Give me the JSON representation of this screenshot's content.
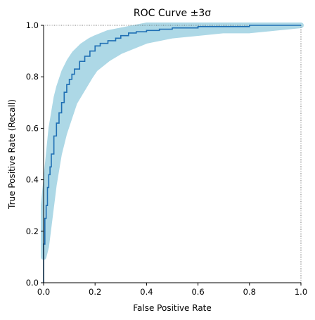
{
  "chart_data": {
    "type": "line",
    "title": "ROC Curve ±3σ",
    "xlabel": "False Positive Rate",
    "ylabel": "True Positive Rate (Recall)",
    "xlim": [
      0,
      1
    ],
    "ylim": [
      0,
      1
    ],
    "x_ticks": [
      "0.0",
      "0.2",
      "0.4",
      "0.6",
      "0.8",
      "1.0"
    ],
    "y_ticks": [
      "0.0",
      "0.2",
      "0.4",
      "0.6",
      "0.8",
      "1.0"
    ],
    "grid": false,
    "legend": "none",
    "colors": {
      "line": "#1f6fb4",
      "band": "#add8e6",
      "reference": "#555555"
    },
    "series": [
      {
        "style": "step",
        "x": [
          0.0,
          0.0,
          0.005,
          0.01,
          0.015,
          0.02,
          0.025,
          0.03,
          0.04,
          0.05,
          0.06,
          0.07,
          0.08,
          0.09,
          0.1,
          0.11,
          0.12,
          0.14,
          0.16,
          0.18,
          0.2,
          0.22,
          0.25,
          0.28,
          0.3,
          0.33,
          0.36,
          0.4,
          0.45,
          0.5,
          0.55,
          0.6,
          0.65,
          0.7,
          0.75,
          0.8,
          0.85,
          0.9,
          0.95,
          1.0
        ],
        "y": [
          0.0,
          0.15,
          0.25,
          0.3,
          0.37,
          0.42,
          0.45,
          0.5,
          0.57,
          0.62,
          0.66,
          0.7,
          0.74,
          0.77,
          0.79,
          0.81,
          0.83,
          0.86,
          0.88,
          0.9,
          0.92,
          0.93,
          0.94,
          0.95,
          0.96,
          0.97,
          0.975,
          0.98,
          0.985,
          0.99,
          0.99,
          0.995,
          0.995,
          0.995,
          0.995,
          1.0,
          1.0,
          1.0,
          1.0,
          1.0
        ]
      }
    ],
    "band": {
      "x": [
        0.0,
        0.01,
        0.02,
        0.03,
        0.04,
        0.05,
        0.06,
        0.08,
        0.1,
        0.12,
        0.15,
        0.18,
        0.2,
        0.25,
        0.3,
        0.35,
        0.4,
        0.5,
        0.6,
        0.7,
        0.8,
        0.9,
        1.0
      ],
      "lower": [
        0.1,
        0.14,
        0.22,
        0.3,
        0.38,
        0.44,
        0.5,
        0.58,
        0.64,
        0.7,
        0.75,
        0.8,
        0.83,
        0.87,
        0.9,
        0.92,
        0.94,
        0.96,
        0.97,
        0.98,
        0.98,
        0.99,
        1.0
      ],
      "upper": [
        0.3,
        0.4,
        0.5,
        0.6,
        0.66,
        0.72,
        0.76,
        0.82,
        0.86,
        0.89,
        0.92,
        0.94,
        0.95,
        0.97,
        0.98,
        0.99,
        1.0,
        1.0,
        1.0,
        1.0,
        1.0,
        1.0,
        1.0
      ]
    }
  }
}
